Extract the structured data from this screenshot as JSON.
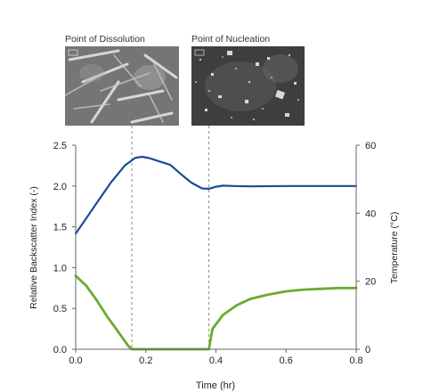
{
  "images": {
    "left": {
      "label": "Point of Dissolution"
    },
    "right": {
      "label": "Point of Nucleation"
    }
  },
  "chart_data": {
    "type": "line",
    "xlabel": "Time (hr)",
    "ylabel_left": "Relative Backscatter Index (-)",
    "ylabel_right": "Temperature (°C)",
    "xlim": [
      0,
      0.8
    ],
    "ylim_left": [
      0,
      2.5
    ],
    "ylim_right": [
      0,
      60
    ],
    "x_ticks": [
      "0.0",
      "0.2",
      "0.4",
      "0.6",
      "0.8"
    ],
    "y_ticks_left": [
      "0.0",
      "0.5",
      "1.0",
      "1.5",
      "2.0",
      "2.5"
    ],
    "y_ticks_right": [
      "0",
      "20",
      "40",
      "60"
    ],
    "grid": false,
    "markers": {
      "dissolution_x": 0.16,
      "nucleation_x": 0.38
    },
    "series": [
      {
        "axis": "right",
        "color": "#1c4a94",
        "x": [
          0.0,
          0.03,
          0.06,
          0.1,
          0.14,
          0.17,
          0.19,
          0.21,
          0.24,
          0.27,
          0.3,
          0.33,
          0.36,
          0.38,
          0.4,
          0.42,
          0.45,
          0.5,
          0.6,
          0.7,
          0.8
        ],
        "y": [
          34.0,
          38.5,
          43.0,
          49.0,
          54.0,
          56.3,
          56.6,
          56.2,
          55.2,
          54.2,
          51.5,
          49.0,
          47.3,
          47.2,
          47.8,
          48.1,
          48.0,
          47.9,
          48.0,
          48.0,
          48.0
        ]
      },
      {
        "axis": "left",
        "color": "#6aab2e",
        "x": [
          0.0,
          0.03,
          0.06,
          0.09,
          0.12,
          0.15,
          0.16,
          0.2,
          0.25,
          0.3,
          0.35,
          0.375,
          0.38,
          0.39,
          0.42,
          0.46,
          0.5,
          0.55,
          0.6,
          0.65,
          0.7,
          0.75,
          0.8
        ],
        "y": [
          0.9,
          0.78,
          0.6,
          0.4,
          0.22,
          0.04,
          0.0,
          0.0,
          0.0,
          0.0,
          0.0,
          0.0,
          0.0,
          0.25,
          0.42,
          0.54,
          0.62,
          0.67,
          0.71,
          0.73,
          0.74,
          0.75,
          0.75
        ]
      }
    ]
  }
}
